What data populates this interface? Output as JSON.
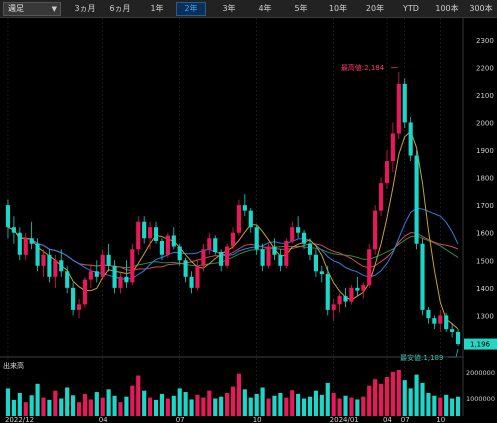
{
  "toolbar": {
    "period_select": "週足",
    "ranges": [
      "3ヵ月",
      "6ヵ月",
      "1年",
      "2年",
      "3年",
      "4年",
      "5年",
      "10年",
      "20年",
      "YTD",
      "100本",
      "300本"
    ],
    "active_range": "2年"
  },
  "colors": {
    "up": "#e8195a",
    "down": "#1ed6c8",
    "ma_short": "#c9a227",
    "ma_mid": "#2f7de0",
    "ma_long1": "#d04a55",
    "ma_long2": "#2e8b46",
    "current_price_bg": "#2ad4c4"
  },
  "chart_data": {
    "type": "candlestick",
    "price_axis": {
      "min": 1189,
      "max": 2350,
      "ticks": [
        2300,
        2200,
        2100,
        2000,
        1900,
        1800,
        1700,
        1600,
        1500,
        1400,
        1300
      ]
    },
    "volume_axis": {
      "ticks": [
        2000000,
        1000000
      ],
      "label": "出来高"
    },
    "x_ticks": [
      "2022/12",
      "04",
      "07",
      "10",
      "2024/01",
      "04",
      "07",
      "10"
    ],
    "high_label": "最高値:2,184",
    "low_label": "最安値:1,189",
    "current_price": "1,196",
    "ohlc": [
      [
        1700,
        1720,
        1580,
        1620
      ],
      [
        1620,
        1660,
        1560,
        1600
      ],
      [
        1600,
        1620,
        1500,
        1520
      ],
      [
        1520,
        1600,
        1500,
        1580
      ],
      [
        1580,
        1640,
        1540,
        1560
      ],
      [
        1560,
        1580,
        1460,
        1480
      ],
      [
        1480,
        1540,
        1440,
        1520
      ],
      [
        1520,
        1540,
        1420,
        1440
      ],
      [
        1440,
        1520,
        1400,
        1500
      ],
      [
        1500,
        1540,
        1440,
        1460
      ],
      [
        1460,
        1480,
        1380,
        1400
      ],
      [
        1400,
        1420,
        1300,
        1320
      ],
      [
        1320,
        1360,
        1290,
        1340
      ],
      [
        1340,
        1440,
        1330,
        1430
      ],
      [
        1430,
        1480,
        1400,
        1460
      ],
      [
        1460,
        1500,
        1420,
        1440
      ],
      [
        1440,
        1540,
        1430,
        1520
      ],
      [
        1520,
        1560,
        1460,
        1480
      ],
      [
        1480,
        1500,
        1380,
        1400
      ],
      [
        1400,
        1460,
        1380,
        1440
      ],
      [
        1440,
        1500,
        1400,
        1420
      ],
      [
        1420,
        1560,
        1410,
        1540
      ],
      [
        1540,
        1660,
        1520,
        1640
      ],
      [
        1640,
        1660,
        1560,
        1580
      ],
      [
        1580,
        1640,
        1540,
        1620
      ],
      [
        1620,
        1640,
        1560,
        1570
      ],
      [
        1570,
        1580,
        1500,
        1520
      ],
      [
        1520,
        1600,
        1510,
        1590
      ],
      [
        1590,
        1620,
        1540,
        1550
      ],
      [
        1550,
        1560,
        1480,
        1500
      ],
      [
        1500,
        1510,
        1420,
        1440
      ],
      [
        1440,
        1460,
        1380,
        1400
      ],
      [
        1400,
        1500,
        1390,
        1480
      ],
      [
        1480,
        1560,
        1460,
        1540
      ],
      [
        1540,
        1600,
        1520,
        1580
      ],
      [
        1580,
        1590,
        1520,
        1530
      ],
      [
        1530,
        1540,
        1460,
        1480
      ],
      [
        1480,
        1560,
        1470,
        1550
      ],
      [
        1550,
        1620,
        1540,
        1600
      ],
      [
        1600,
        1720,
        1590,
        1700
      ],
      [
        1700,
        1740,
        1660,
        1680
      ],
      [
        1680,
        1690,
        1600,
        1620
      ],
      [
        1620,
        1630,
        1520,
        1540
      ],
      [
        1540,
        1560,
        1460,
        1480
      ],
      [
        1480,
        1560,
        1470,
        1550
      ],
      [
        1550,
        1580,
        1500,
        1520
      ],
      [
        1520,
        1540,
        1460,
        1480
      ],
      [
        1480,
        1580,
        1470,
        1570
      ],
      [
        1570,
        1640,
        1560,
        1620
      ],
      [
        1620,
        1660,
        1580,
        1600
      ],
      [
        1600,
        1610,
        1540,
        1560
      ],
      [
        1560,
        1580,
        1500,
        1520
      ],
      [
        1520,
        1540,
        1440,
        1460
      ],
      [
        1460,
        1480,
        1420,
        1450
      ],
      [
        1450,
        1480,
        1300,
        1320
      ],
      [
        1320,
        1360,
        1280,
        1340
      ],
      [
        1340,
        1380,
        1310,
        1370
      ],
      [
        1370,
        1400,
        1330,
        1350
      ],
      [
        1350,
        1410,
        1340,
        1400
      ],
      [
        1400,
        1440,
        1370,
        1390
      ],
      [
        1390,
        1420,
        1360,
        1410
      ],
      [
        1410,
        1560,
        1400,
        1540
      ],
      [
        1540,
        1700,
        1520,
        1680
      ],
      [
        1680,
        1800,
        1660,
        1780
      ],
      [
        1780,
        1900,
        1760,
        1860
      ],
      [
        1860,
        2000,
        1820,
        1960
      ],
      [
        1960,
        2184,
        1940,
        2140
      ],
      [
        2140,
        2160,
        1980,
        2000
      ],
      [
        2000,
        2020,
        1860,
        1880
      ],
      [
        1880,
        1900,
        1540,
        1560
      ],
      [
        1560,
        1580,
        1300,
        1320
      ],
      [
        1320,
        1330,
        1270,
        1290
      ],
      [
        1290,
        1300,
        1250,
        1270
      ],
      [
        1270,
        1320,
        1240,
        1300
      ],
      [
        1300,
        1310,
        1240,
        1250
      ],
      [
        1250,
        1270,
        1220,
        1240
      ],
      [
        1240,
        1250,
        1189,
        1196
      ]
    ],
    "volume": [
      60,
      35,
      50,
      30,
      45,
      70,
      40,
      35,
      55,
      38,
      62,
      45,
      30,
      48,
      36,
      52,
      40,
      58,
      44,
      30,
      42,
      66,
      88,
      55,
      40,
      35,
      48,
      38,
      44,
      60,
      52,
      36,
      46,
      40,
      55,
      38,
      42,
      50,
      64,
      92,
      58,
      40,
      48,
      62,
      38,
      44,
      50,
      40,
      56,
      48,
      38,
      42,
      55,
      46,
      72,
      50,
      38,
      44,
      40,
      36,
      42,
      66,
      80,
      70,
      85,
      96,
      100,
      78,
      60,
      90,
      72,
      50,
      44,
      40,
      46,
      38,
      42
    ],
    "series": [
      {
        "name": "ma_short"
      },
      {
        "name": "ma_mid"
      },
      {
        "name": "ma_long1"
      },
      {
        "name": "ma_long2"
      }
    ]
  }
}
